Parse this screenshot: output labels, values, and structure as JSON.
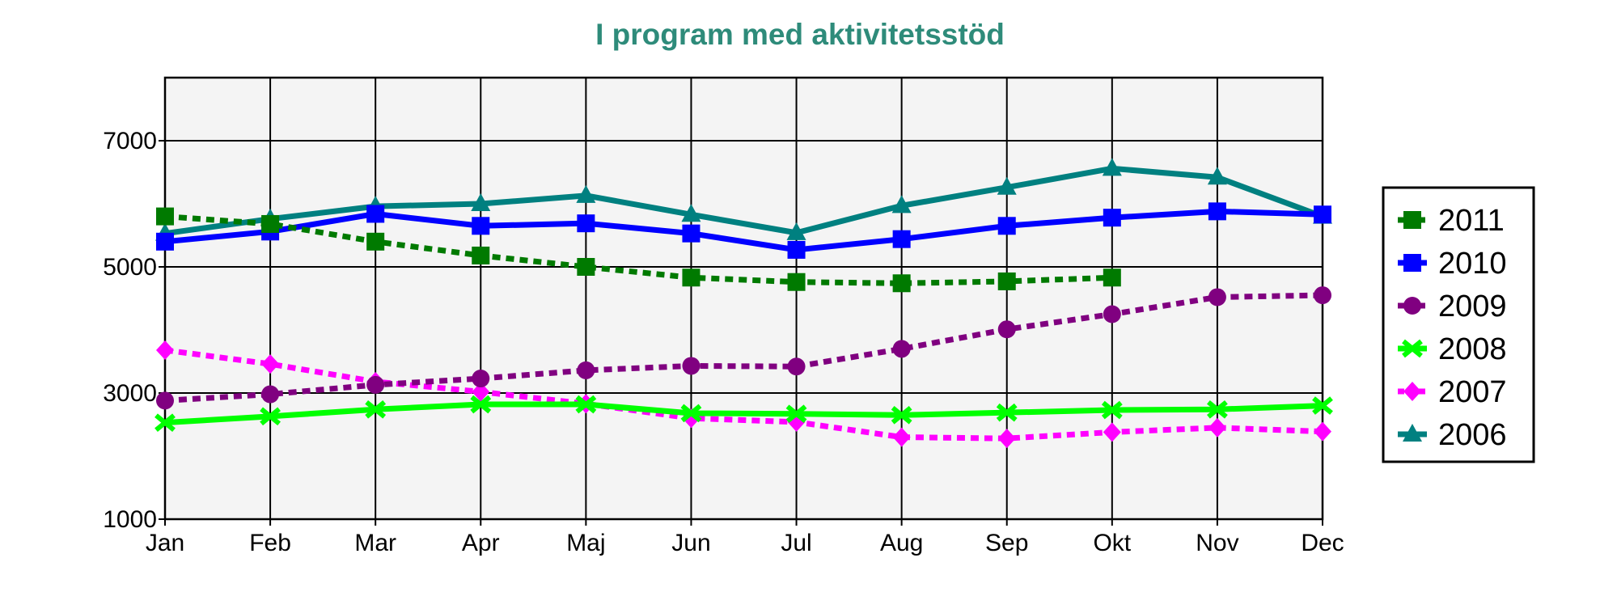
{
  "chart_data": {
    "type": "line",
    "title": "I program med aktivitetsstöd",
    "title_color": "#2e8b7a",
    "xlabel": "",
    "ylabel": "",
    "categories": [
      "Jan",
      "Feb",
      "Mar",
      "Apr",
      "Maj",
      "Jun",
      "Jul",
      "Aug",
      "Sep",
      "Okt",
      "Nov",
      "Dec"
    ],
    "ylim": [
      1000,
      8000
    ],
    "yticks": [
      1000,
      3000,
      5000,
      7000
    ],
    "grid": true,
    "plot_background": "#f4f4f4",
    "legend_position": "right",
    "series": [
      {
        "name": "2011",
        "color": "#007a00",
        "style": "dotted",
        "marker": "square",
        "values": [
          5800,
          5680,
          5400,
          5180,
          5000,
          4830,
          4760,
          4740,
          4770,
          4830,
          null,
          null
        ]
      },
      {
        "name": "2010",
        "color": "#0000ff",
        "style": "solid",
        "marker": "square",
        "values": [
          5400,
          5560,
          5840,
          5650,
          5690,
          5530,
          5270,
          5440,
          5650,
          5780,
          5880,
          5830
        ]
      },
      {
        "name": "2009",
        "color": "#800080",
        "style": "dotted",
        "marker": "circle",
        "values": [
          2880,
          2980,
          3130,
          3230,
          3360,
          3430,
          3420,
          3700,
          4010,
          4250,
          4520,
          4550
        ]
      },
      {
        "name": "2008",
        "color": "#00ff00",
        "style": "solid",
        "marker": "x",
        "values": [
          2530,
          2630,
          2740,
          2820,
          2820,
          2680,
          2670,
          2650,
          2690,
          2730,
          2740,
          2800
        ]
      },
      {
        "name": "2007",
        "color": "#ff00ff",
        "style": "dotted",
        "marker": "diamond",
        "values": [
          3680,
          3460,
          3180,
          3020,
          2830,
          2600,
          2540,
          2300,
          2280,
          2380,
          2450,
          2390
        ]
      },
      {
        "name": "2006",
        "color": "#008080",
        "style": "solid",
        "marker": "triangle",
        "values": [
          5530,
          5760,
          5960,
          6000,
          6130,
          5830,
          5540,
          5970,
          6260,
          6560,
          6420,
          5800
        ]
      }
    ]
  }
}
